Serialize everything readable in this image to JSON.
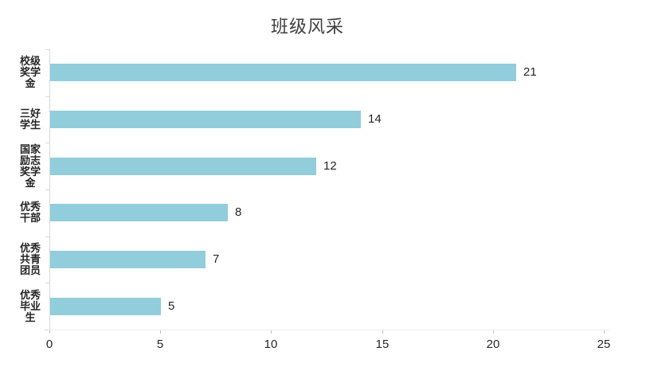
{
  "chart_data": {
    "type": "bar",
    "orientation": "horizontal",
    "title": "班级风采",
    "categories": [
      "校级奖学金",
      "三好学生",
      "国家励志奖学金",
      "优秀干部",
      "优秀共青团员",
      "优秀毕业生"
    ],
    "category_label_lines": [
      [
        "校级",
        "奖学",
        "金"
      ],
      [
        "三好",
        "学生"
      ],
      [
        "国家",
        "励志",
        "奖学",
        "金"
      ],
      [
        "优秀",
        "干部"
      ],
      [
        "优秀",
        "共青",
        "团员"
      ],
      [
        "优秀",
        "毕业",
        "生"
      ]
    ],
    "values": [
      21,
      14,
      12,
      8,
      7,
      5
    ],
    "value_labels": [
      "21",
      "14",
      "12",
      "8",
      "7",
      "5"
    ],
    "xlabel": "",
    "ylabel": "",
    "xlim": [
      0,
      25
    ],
    "x_ticks": [
      0,
      5,
      10,
      15,
      20,
      25
    ],
    "x_tick_labels": [
      "0",
      "5",
      "10",
      "15",
      "20",
      "25"
    ],
    "grid": false,
    "legend": "none",
    "bar_color": "#92cddc",
    "axis_color": "#d9d9d9",
    "tick_color": "#bfbfbf",
    "text_color": "#262626"
  }
}
